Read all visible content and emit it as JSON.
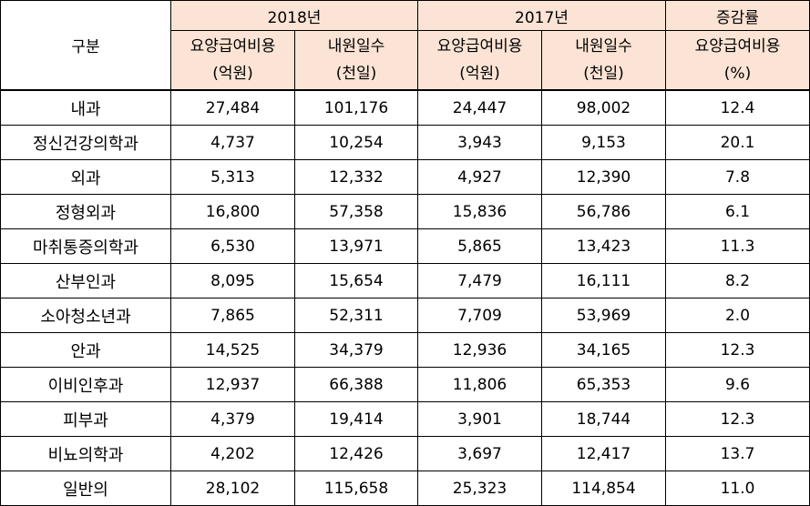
{
  "header": {
    "category": "구분",
    "groups": [
      "2018년",
      "2017년",
      "증감률"
    ],
    "subcolumns": [
      {
        "label": "요양급여비용",
        "unit": "(억원)"
      },
      {
        "label": "내원일수",
        "unit": "(천일)"
      },
      {
        "label": "요양급여비용",
        "unit": "(억원)"
      },
      {
        "label": "내원일수",
        "unit": "(천일)"
      },
      {
        "label": "요양급여비용",
        "unit": "(%)"
      }
    ]
  },
  "rows": [
    {
      "name": "내과",
      "values": [
        "27,484",
        "101,176",
        "24,447",
        "98,002",
        "12.4"
      ]
    },
    {
      "name": "정신건강의학과",
      "values": [
        "4,737",
        "10,254",
        "3,943",
        "9,153",
        "20.1"
      ]
    },
    {
      "name": "외과",
      "values": [
        "5,313",
        "12,332",
        "4,927",
        "12,390",
        "7.8"
      ]
    },
    {
      "name": "정형외과",
      "values": [
        "16,800",
        "57,358",
        "15,836",
        "56,786",
        "6.1"
      ]
    },
    {
      "name": "마취통증의학과",
      "values": [
        "6,530",
        "13,971",
        "5,865",
        "13,423",
        "11.3"
      ]
    },
    {
      "name": "산부인과",
      "values": [
        "8,095",
        "15,654",
        "7,479",
        "16,111",
        "8.2"
      ]
    },
    {
      "name": "소아청소년과",
      "values": [
        "7,865",
        "52,311",
        "7,709",
        "53,969",
        "2.0"
      ]
    },
    {
      "name": "안과",
      "values": [
        "14,525",
        "34,379",
        "12,936",
        "34,165",
        "12.3"
      ]
    },
    {
      "name": "이비인후과",
      "values": [
        "12,937",
        "66,388",
        "11,806",
        "65,353",
        "9.6"
      ]
    },
    {
      "name": "피부과",
      "values": [
        "4,379",
        "19,414",
        "3,901",
        "18,744",
        "12.3"
      ]
    },
    {
      "name": "비뇨의학과",
      "values": [
        "4,202",
        "12,426",
        "3,697",
        "12,417",
        "13.7"
      ]
    },
    {
      "name": "일반의",
      "values": [
        "28,102",
        "115,658",
        "25,323",
        "114,854",
        "11.0"
      ]
    }
  ]
}
